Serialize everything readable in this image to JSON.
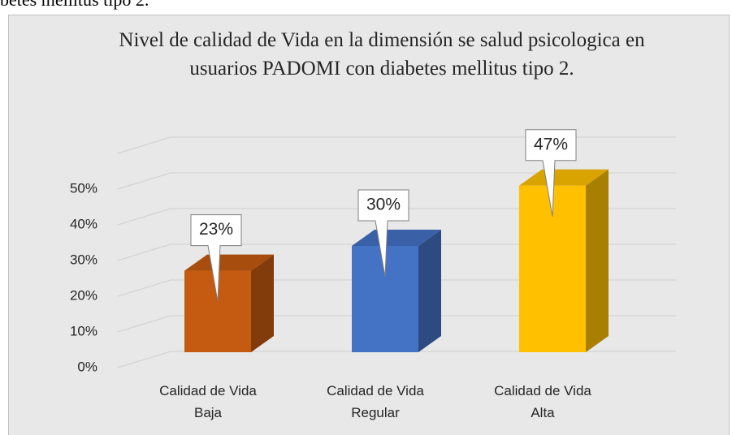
{
  "page_text": "betes mellitus tipo 2.",
  "chart_data": {
    "type": "bar3d",
    "title": "Nivel de calidad de Vida en la dimensión se salud psicologica en usuarios PADOMI con diabetes mellitus tipo 2.",
    "categories": [
      "Calidad de Vida Baja",
      "Calidad de Vida Regular",
      "Calidad de Vida Alta"
    ],
    "values": [
      23,
      30,
      47
    ],
    "value_labels": [
      "23%",
      "30%",
      "47%"
    ],
    "colors": [
      "#c55a11",
      "#4472c4",
      "#ffc000"
    ],
    "ylim": [
      0,
      60
    ],
    "yticks": [
      {
        "value": 0,
        "label": "0%"
      },
      {
        "value": 10,
        "label": "10%"
      },
      {
        "value": 20,
        "label": "20%"
      },
      {
        "value": 30,
        "label": "30%"
      },
      {
        "value": 40,
        "label": "40%"
      },
      {
        "value": 50,
        "label": "50%"
      }
    ],
    "grid": true
  }
}
